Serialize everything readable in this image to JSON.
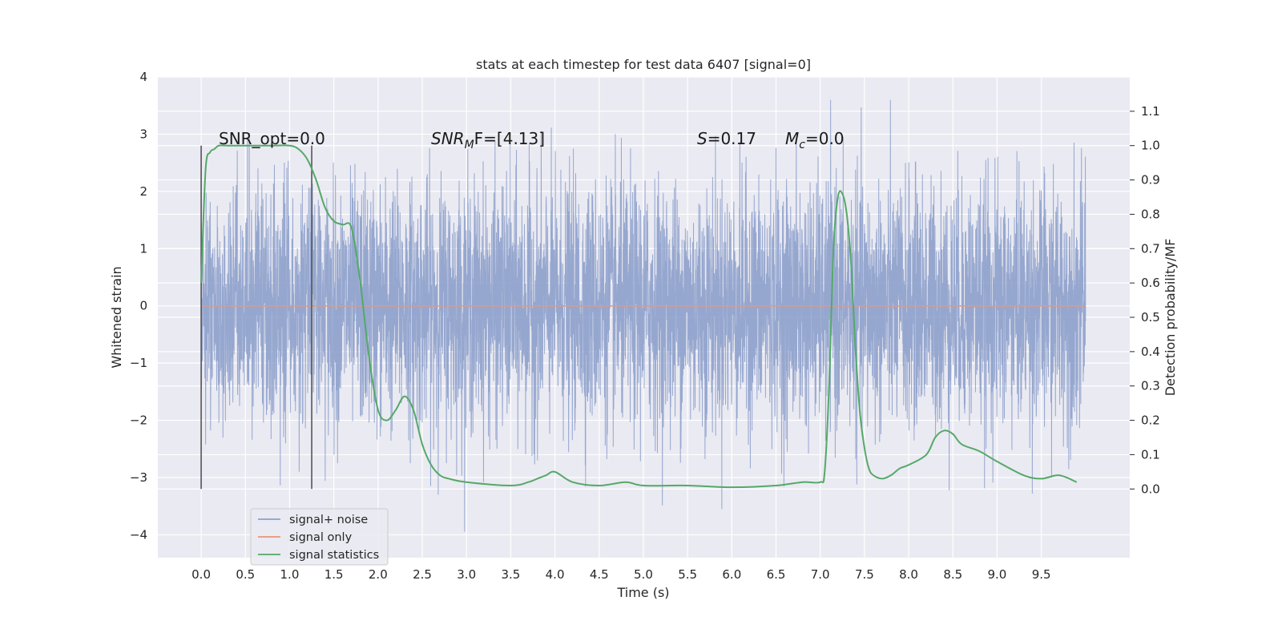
{
  "chart_data": {
    "type": "line",
    "title": "stats at each timestep for test data 6407 [signal=0]",
    "xlabel": "Time (s)",
    "ylabel_left": "Whitened strain",
    "ylabel_right": "Detection probability/MF",
    "xlim": [
      -0.49,
      10.5
    ],
    "ylim_left": [
      -4.4,
      4.0
    ],
    "ylim_right": [
      -0.2,
      1.2
    ],
    "x_ticks": [
      "0.0",
      "0.5",
      "1.0",
      "1.5",
      "2.0",
      "2.5",
      "3.0",
      "3.5",
      "4.0",
      "4.5",
      "5.0",
      "5.5",
      "6.0",
      "6.5",
      "7.0",
      "7.5",
      "8.0",
      "8.5",
      "9.0",
      "9.5"
    ],
    "y_left_ticks": [
      "4",
      "3",
      "2",
      "1",
      "0",
      "−1",
      "−2",
      "−3",
      "−4"
    ],
    "y_right_ticks": [
      "1.1",
      "1.0",
      "0.9",
      "0.8",
      "0.7",
      "0.6",
      "0.5",
      "0.4",
      "0.3",
      "0.2",
      "0.1",
      "0.0"
    ],
    "grid": true,
    "legend_position": "lower-left",
    "annotations": {
      "snr_opt": "SNR_opt=0.0",
      "snr_mf_base": "SNR",
      "snr_mf_sub": "M",
      "snr_mf_rest": "F=[4.13]",
      "s_base": "S",
      "s_rest": "=0.17",
      "mc_base": "M",
      "mc_sub": "c",
      "mc_rest": "=0.0"
    },
    "markers": {
      "x": [
        0.0,
        1.25
      ],
      "y_range": [
        -3.2,
        2.8
      ]
    },
    "series": [
      {
        "name": "signal+ noise",
        "color": "#8da0cb",
        "t_range": [
          0.0,
          10.0
        ],
        "amplitude_range": [
          -4.1,
          3.6
        ]
      },
      {
        "name": "signal only",
        "color": "#e8967a",
        "x": [
          0.0,
          10.0
        ],
        "y": [
          0.0,
          0.0
        ]
      },
      {
        "name": "signal statistics",
        "color": "#55a868",
        "axis": "right",
        "x": [
          0.0,
          0.05,
          0.1,
          0.15,
          0.2,
          0.3,
          0.5,
          0.8,
          1.0,
          1.1,
          1.2,
          1.3,
          1.4,
          1.5,
          1.6,
          1.7,
          1.8,
          1.9,
          2.0,
          2.1,
          2.2,
          2.3,
          2.4,
          2.5,
          2.6,
          2.7,
          2.8,
          3.0,
          3.5,
          3.7,
          3.8,
          3.9,
          4.0,
          4.2,
          4.5,
          4.8,
          5.0,
          5.5,
          6.0,
          6.5,
          6.8,
          7.0,
          7.05,
          7.1,
          7.15,
          7.2,
          7.25,
          7.3,
          7.35,
          7.4,
          7.45,
          7.5,
          7.55,
          7.6,
          7.7,
          7.8,
          7.9,
          8.0,
          8.2,
          8.3,
          8.4,
          8.5,
          8.6,
          8.8,
          9.0,
          9.3,
          9.5,
          9.7,
          9.9
        ],
        "y": [
          0.6,
          0.93,
          0.98,
          0.99,
          1.0,
          1.0,
          1.0,
          1.0,
          1.0,
          0.99,
          0.96,
          0.9,
          0.82,
          0.78,
          0.77,
          0.76,
          0.6,
          0.38,
          0.23,
          0.2,
          0.23,
          0.27,
          0.23,
          0.13,
          0.07,
          0.04,
          0.03,
          0.02,
          0.01,
          0.02,
          0.03,
          0.04,
          0.05,
          0.02,
          0.01,
          0.02,
          0.01,
          0.01,
          0.005,
          0.01,
          0.02,
          0.02,
          0.05,
          0.3,
          0.7,
          0.85,
          0.86,
          0.8,
          0.65,
          0.4,
          0.22,
          0.12,
          0.06,
          0.04,
          0.03,
          0.04,
          0.06,
          0.07,
          0.1,
          0.15,
          0.17,
          0.16,
          0.13,
          0.11,
          0.08,
          0.04,
          0.03,
          0.04,
          0.02
        ]
      }
    ]
  }
}
